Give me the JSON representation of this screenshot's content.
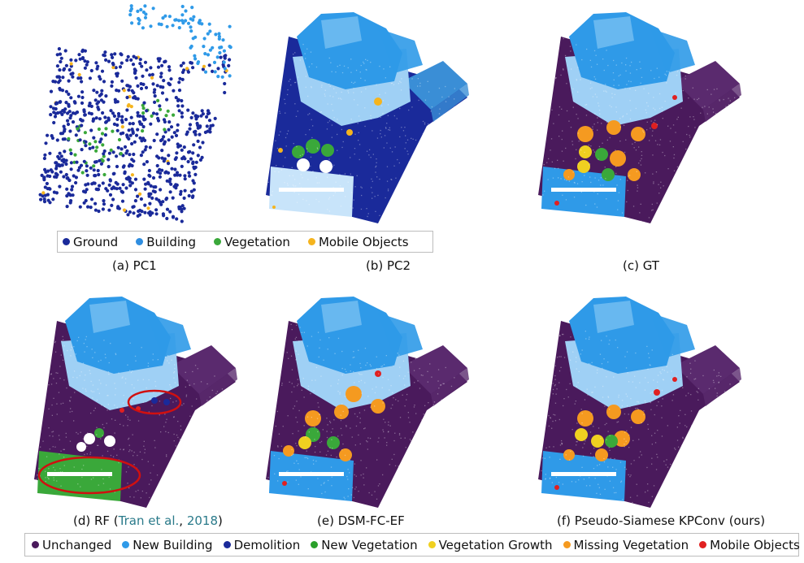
{
  "legend_top": {
    "items": [
      {
        "label": "Ground",
        "color": "#1a2a9a"
      },
      {
        "label": "Building",
        "color": "#2f8ee0"
      },
      {
        "label": "Vegetation",
        "color": "#3aa83a"
      },
      {
        "label": "Mobile Objects",
        "color": "#f5b41e"
      }
    ]
  },
  "legend_bottom": {
    "items": [
      {
        "label": "Unchanged",
        "color": "#4a1a5c"
      },
      {
        "label": "New Building",
        "color": "#2f9ae8"
      },
      {
        "label": "Demolition",
        "color": "#1a2a9a"
      },
      {
        "label": "New Vegetation",
        "color": "#2aa02a"
      },
      {
        "label": "Vegetation Growth",
        "color": "#f0d020"
      },
      {
        "label": "Missing Vegetation",
        "color": "#f59a20"
      },
      {
        "label": "Mobile Objects",
        "color": "#e02020"
      }
    ]
  },
  "captions": {
    "a": "(a) PC1",
    "b": "(b) PC2",
    "c": "(c) GT",
    "d_prefix": "(d) RF (",
    "d_cite_author": "Tran et al.",
    "d_sep": ", ",
    "d_cite_year": "2018",
    "d_suffix": ")",
    "e": "(e) DSM-FC-EF",
    "f": "(f) Pseudo-Siamese KPConv (ours)"
  },
  "colors": {
    "ground": "#1a2a9a",
    "unchanged": "#4a1a5c",
    "building_light": "#9fd0f5",
    "building": "#2f9ae8",
    "white": "#ffffff",
    "vegetation": "#3aa83a",
    "mobile": "#f5b41e",
    "missing": "#f59a20",
    "growth": "#f0d020",
    "red": "#e02020",
    "annotation": "#d01010"
  }
}
